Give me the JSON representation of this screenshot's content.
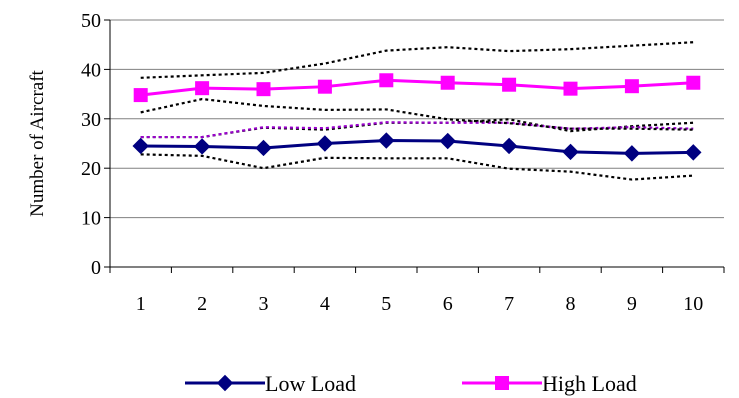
{
  "chart_data": {
    "type": "line",
    "title": "",
    "xlabel": "",
    "ylabel": "Number of Aircraft",
    "categories": [
      "1",
      "2",
      "3",
      "4",
      "5",
      "6",
      "7",
      "8",
      "9",
      "10"
    ],
    "ylim": [
      0,
      50
    ],
    "yticks": [
      "0",
      "10",
      "20",
      "30",
      "40",
      "50"
    ],
    "grid": "horizontal",
    "legend_position": "bottom",
    "series": [
      {
        "name": "Low Load",
        "color": "#000080",
        "marker": "diamond",
        "values": [
          24.5,
          24.4,
          24.1,
          25.0,
          25.6,
          25.5,
          24.5,
          23.3,
          23.0,
          23.2
        ]
      },
      {
        "name": "High Load",
        "color": "#ff00ff",
        "marker": "square",
        "values": [
          34.8,
          36.2,
          36.0,
          36.5,
          37.8,
          37.3,
          36.9,
          36.1,
          36.6,
          37.3
        ]
      }
    ],
    "bands": [
      {
        "color": "#000000",
        "style": "dotted",
        "values": [
          22.8,
          22.5,
          20.0,
          22.1,
          22.0,
          22.0,
          19.9,
          19.3,
          17.7,
          18.5
        ]
      },
      {
        "color": "#000000",
        "style": "dotted",
        "values": [
          26.3,
          26.3,
          28.2,
          27.8,
          29.2,
          29.2,
          29.9,
          27.5,
          28.5,
          29.2
        ]
      },
      {
        "color": "#9900cc",
        "style": "dotted",
        "values": [
          26.3,
          26.3,
          28.3,
          28.1,
          29.3,
          29.2,
          29.2,
          28.0,
          28.3,
          28.0
        ]
      },
      {
        "color": "#000000",
        "style": "dotted",
        "values": [
          31.3,
          34.0,
          32.6,
          31.8,
          31.9,
          29.9,
          29.1,
          28.0,
          28.0,
          27.8
        ]
      },
      {
        "color": "#000000",
        "style": "dotted",
        "values": [
          38.3,
          38.8,
          39.3,
          41.2,
          43.8,
          44.5,
          43.7,
          44.1,
          44.8,
          45.5
        ]
      }
    ]
  }
}
